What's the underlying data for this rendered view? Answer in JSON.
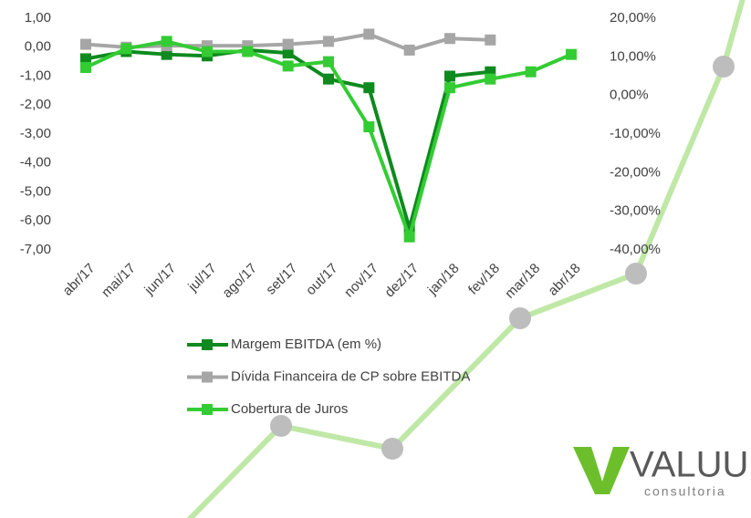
{
  "chart_data": {
    "type": "line",
    "categories": [
      "abr/17",
      "mai/17",
      "jun/17",
      "jul/17",
      "ago/17",
      "set/17",
      "out/17",
      "nov/17",
      "dez/17",
      "jan/18",
      "fev/18",
      "mar/18",
      "abr/18"
    ],
    "series": [
      {
        "name": "Margem EBITDA (em %)",
        "color": "#0e8a1e",
        "values": [
          -0.4,
          -0.15,
          -0.25,
          -0.3,
          -0.1,
          -0.2,
          -1.1,
          -1.4,
          -6.25,
          -1.0,
          -0.85,
          null,
          null
        ]
      },
      {
        "name": "Dívida Financeira de CP sobre EBITDA",
        "color": "#a6a6a6",
        "values": [
          0.1,
          0.0,
          0.05,
          0.05,
          0.05,
          0.1,
          0.2,
          0.45,
          -0.1,
          0.3,
          0.25,
          null,
          null
        ]
      },
      {
        "name": "Cobertura de Juros",
        "color": "#33cc33",
        "values": [
          -0.7,
          -0.05,
          0.2,
          -0.15,
          -0.15,
          -0.65,
          -0.5,
          -2.75,
          -6.55,
          -1.4,
          -1.1,
          -0.85,
          -0.25
        ]
      }
    ],
    "ylim": [
      -7,
      1
    ],
    "yticks": [
      {
        "value": 1,
        "label": "1,00"
      },
      {
        "value": 0,
        "label": "0,00"
      },
      {
        "value": -1,
        "label": "-1,00"
      },
      {
        "value": -2,
        "label": "-2,00"
      },
      {
        "value": -3,
        "label": "-3,00"
      },
      {
        "value": -4,
        "label": "-4,00"
      },
      {
        "value": -5,
        "label": "-5,00"
      },
      {
        "value": -6,
        "label": "-6,00"
      },
      {
        "value": -7,
        "label": "-7,00"
      }
    ],
    "y2lim": [
      -40,
      20
    ],
    "y2ticks": [
      {
        "value": 20,
        "label": "20,00%"
      },
      {
        "value": 10,
        "label": "10,00%"
      },
      {
        "value": 0,
        "label": "0,00%"
      },
      {
        "value": -10,
        "label": "-10,00%"
      },
      {
        "value": -20,
        "label": "-20,00%"
      },
      {
        "value": -30,
        "label": "-30,00%"
      },
      {
        "value": -40,
        "label": "-40,00%"
      }
    ],
    "legend": "bottom"
  },
  "logo": {
    "name": "VALUU",
    "tagline": "consultoria"
  }
}
